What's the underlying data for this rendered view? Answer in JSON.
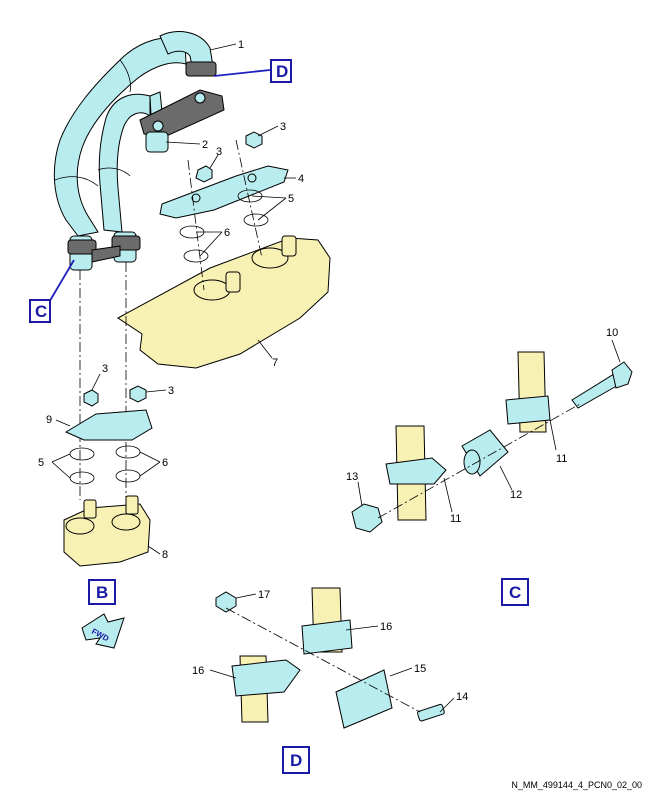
{
  "callouts": {
    "c1": "1",
    "c2": "2",
    "c3a": "3",
    "c3b": "3",
    "c4": "4",
    "c5a": "5",
    "c6a": "6",
    "c7": "7",
    "c3c": "3",
    "c3d": "3",
    "c9": "9",
    "c5b": "5",
    "c6b": "6",
    "c8": "8",
    "c10": "10",
    "c11a": "11",
    "c11b": "11",
    "c12": "12",
    "c13": "13",
    "c17": "17",
    "c16a": "16",
    "c16b": "16",
    "c15": "15",
    "c14": "14"
  },
  "view_tags": {
    "d_top": "D",
    "c_left": "C",
    "b_view": "B",
    "c_view": "C",
    "d_view": "D"
  },
  "fwd_label": "FWD",
  "reference_code": "N_MM_499144_4_PCN0_02_00",
  "colors": {
    "part_fill": "#b8ecef",
    "engine_fill": "#f7f1b4",
    "tag_color": "#1a1aa6",
    "clamp_dark": "#6b6b6b"
  }
}
